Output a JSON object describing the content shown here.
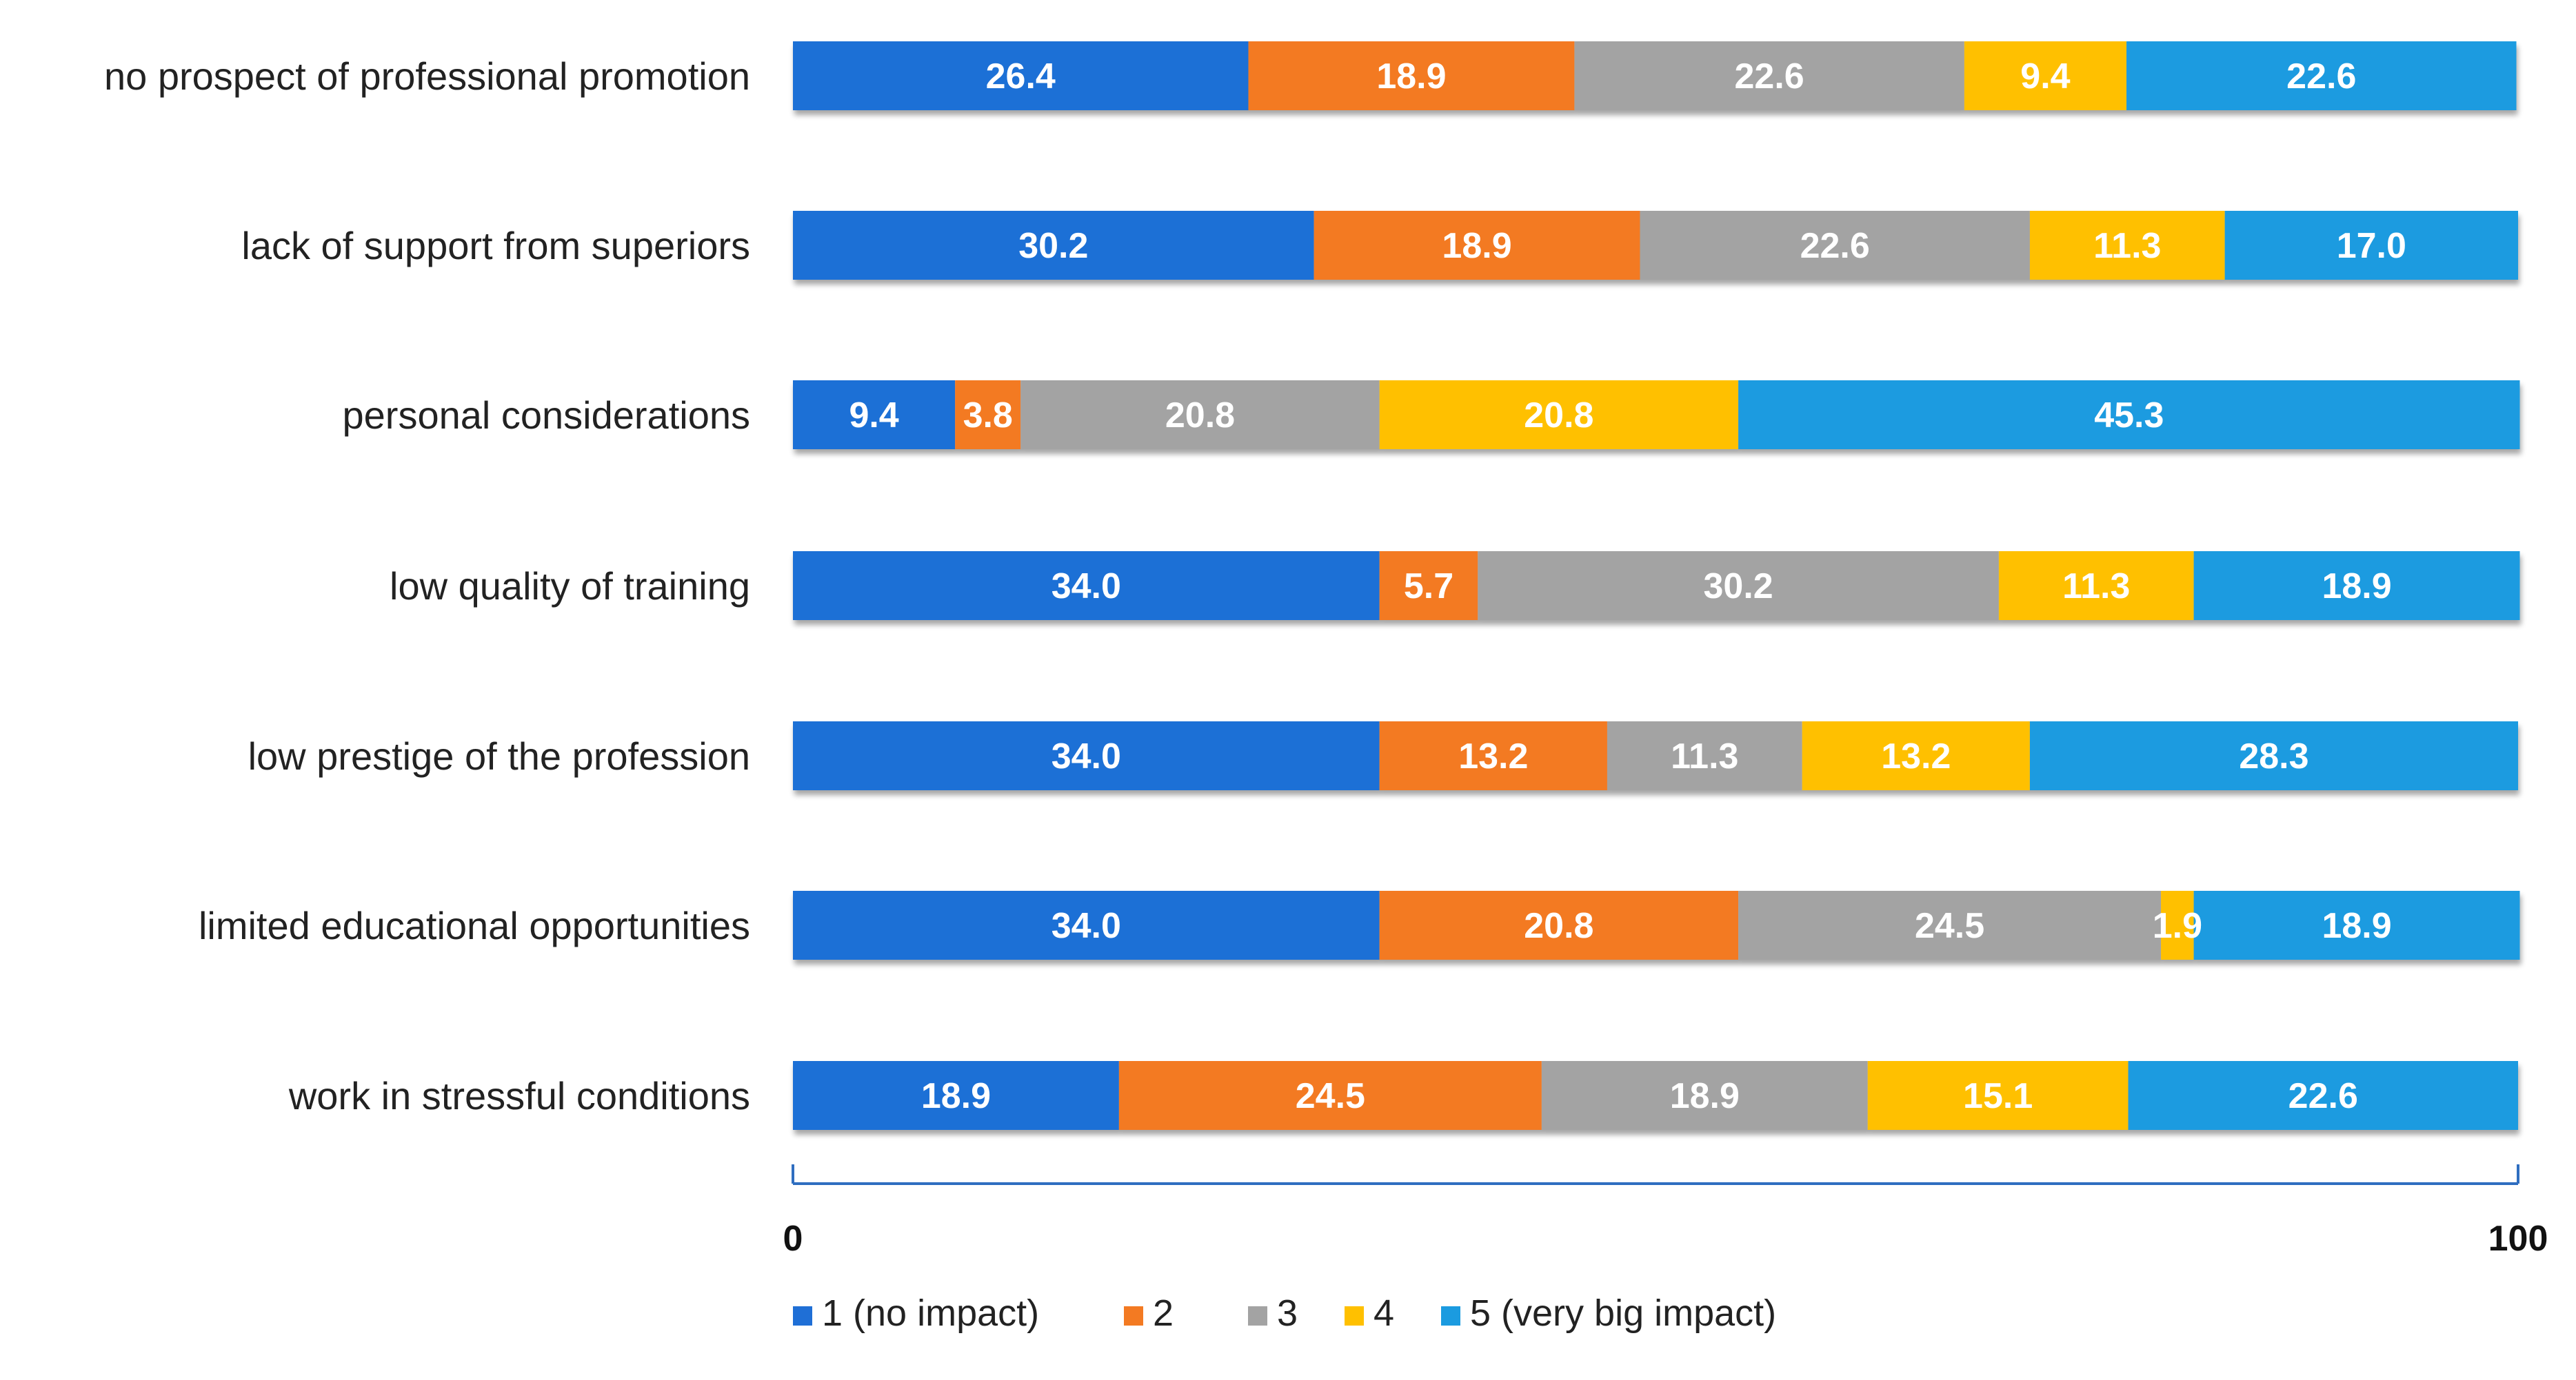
{
  "chart_data": {
    "type": "bar",
    "orientation": "horizontal",
    "stacked": true,
    "title": "",
    "xlabel": "",
    "ylabel": "",
    "xlim": [
      0,
      100
    ],
    "x_ticks": [
      "0",
      "100"
    ],
    "grid": false,
    "legend_position": "bottom",
    "categories": [
      "no prospect of professional promotion",
      "lack of support from superiors",
      "personal considerations",
      "low quality of training",
      "low prestige of the profession",
      "limited educational opportunities",
      "work in stressful conditions"
    ],
    "series": [
      {
        "name": "1 (no impact)",
        "color": "#1F6FD6",
        "values": [
          26.4,
          30.2,
          9.4,
          34.0,
          34.0,
          34.0,
          18.9
        ],
        "labels": [
          "26.4",
          "30.2",
          "9.4",
          "34.0",
          "34.0",
          "34.0",
          "18.9"
        ]
      },
      {
        "name": "2",
        "color": "#F37A22",
        "values": [
          18.9,
          18.9,
          3.8,
          5.7,
          13.2,
          20.8,
          24.5
        ],
        "labels": [
          "18.9",
          "18.9",
          "3.8",
          "5.7",
          "13.2",
          "20.8",
          "24.5"
        ]
      },
      {
        "name": "3",
        "color": "#A3A3A3",
        "values": [
          22.6,
          22.6,
          20.8,
          30.2,
          11.3,
          24.5,
          18.9
        ],
        "labels": [
          "22.6",
          "22.6",
          "20.8",
          "30.2",
          "11.3",
          "24.5",
          "18.9"
        ]
      },
      {
        "name": "4",
        "color": "#FFC000",
        "values": [
          9.4,
          11.3,
          20.8,
          11.3,
          13.2,
          1.9,
          15.1
        ],
        "labels": [
          "9.4",
          "11.3",
          "20.8",
          "11.3",
          "13.2",
          "1.9",
          "15.1"
        ]
      },
      {
        "name": "5 (very big impact)",
        "color": "#1B9BE0",
        "values": [
          22.6,
          17.0,
          45.3,
          18.9,
          28.3,
          18.9,
          22.6
        ],
        "labels": [
          "22.6",
          "17.0",
          "45.3",
          "18.9",
          "28.3",
          "18.9",
          "22.6"
        ]
      }
    ]
  },
  "axis_color": "#2F6EC0"
}
